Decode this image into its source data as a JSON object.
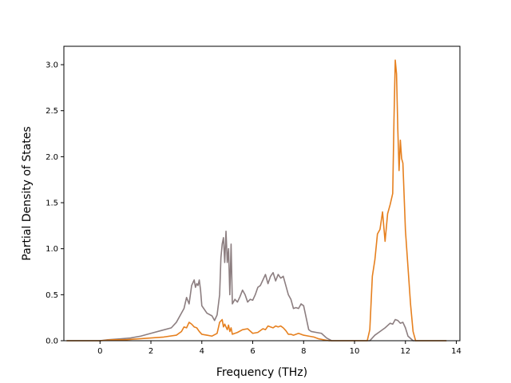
{
  "chart_data": {
    "type": "line",
    "title": "",
    "xlabel": "Frequency (THz)",
    "ylabel": "Partial Density of States",
    "xlim": [
      -1.42,
      14.14
    ],
    "ylim": [
      0.0,
      3.2
    ],
    "xticks": [
      0,
      2,
      4,
      6,
      8,
      10,
      12,
      14
    ],
    "xtick_labels": [
      "0",
      "2",
      "4",
      "6",
      "8",
      "10",
      "12",
      "14"
    ],
    "yticks": [
      0.0,
      0.5,
      1.0,
      1.5,
      2.0,
      2.5,
      3.0
    ],
    "ytick_labels": [
      "0.0",
      "0.5",
      "1.0",
      "1.5",
      "2.0",
      "2.5",
      "3.0"
    ],
    "grid": false,
    "legend": "none",
    "series": [
      {
        "color": "#8c7e80",
        "x": [
          -1.3,
          0.0,
          0.3,
          0.8,
          1.2,
          1.6,
          2.0,
          2.4,
          2.8,
          3.0,
          3.2,
          3.3,
          3.4,
          3.5,
          3.6,
          3.7,
          3.75,
          3.8,
          3.85,
          3.9,
          3.95,
          4.0,
          4.2,
          4.4,
          4.5,
          4.6,
          4.7,
          4.75,
          4.8,
          4.85,
          4.9,
          4.95,
          5.0,
          5.05,
          5.1,
          5.15,
          5.2,
          5.3,
          5.4,
          5.5,
          5.6,
          5.7,
          5.8,
          5.9,
          6.0,
          6.1,
          6.2,
          6.3,
          6.4,
          6.5,
          6.6,
          6.7,
          6.8,
          6.9,
          7.0,
          7.1,
          7.2,
          7.3,
          7.4,
          7.5,
          7.6,
          7.7,
          7.8,
          7.9,
          8.0,
          8.1,
          8.2,
          8.3,
          8.5,
          8.7,
          8.9,
          9.1,
          10.0,
          10.6,
          10.8,
          11.0,
          11.2,
          11.4,
          11.5,
          11.6,
          11.7,
          11.8,
          11.9,
          12.0,
          12.1,
          12.3,
          13.6
        ],
        "y": [
          0.0,
          0.0,
          0.01,
          0.02,
          0.03,
          0.05,
          0.08,
          0.11,
          0.14,
          0.2,
          0.3,
          0.35,
          0.47,
          0.4,
          0.6,
          0.66,
          0.58,
          0.62,
          0.6,
          0.66,
          0.55,
          0.38,
          0.3,
          0.27,
          0.22,
          0.28,
          0.5,
          0.9,
          1.05,
          1.12,
          0.85,
          1.19,
          0.85,
          1.0,
          0.5,
          1.05,
          0.4,
          0.45,
          0.42,
          0.48,
          0.55,
          0.5,
          0.42,
          0.45,
          0.44,
          0.5,
          0.58,
          0.6,
          0.66,
          0.72,
          0.62,
          0.7,
          0.74,
          0.65,
          0.72,
          0.68,
          0.7,
          0.6,
          0.5,
          0.45,
          0.35,
          0.36,
          0.35,
          0.4,
          0.38,
          0.25,
          0.12,
          0.1,
          0.09,
          0.08,
          0.03,
          0.0,
          0.0,
          0.0,
          0.06,
          0.1,
          0.14,
          0.19,
          0.18,
          0.23,
          0.22,
          0.19,
          0.2,
          0.14,
          0.05,
          0.0,
          0.0
        ]
      },
      {
        "color": "#e6801f",
        "x": [
          -1.3,
          0.0,
          0.5,
          1.0,
          1.5,
          2.0,
          2.5,
          3.0,
          3.2,
          3.3,
          3.4,
          3.5,
          3.6,
          3.7,
          3.8,
          3.9,
          4.0,
          4.2,
          4.4,
          4.6,
          4.7,
          4.8,
          4.85,
          4.9,
          5.0,
          5.05,
          5.1,
          5.15,
          5.2,
          5.4,
          5.6,
          5.8,
          6.0,
          6.2,
          6.4,
          6.5,
          6.6,
          6.7,
          6.8,
          6.9,
          7.0,
          7.1,
          7.2,
          7.3,
          7.4,
          7.5,
          7.6,
          7.8,
          8.0,
          8.2,
          8.4,
          8.6,
          8.8,
          9.0,
          10.0,
          10.5,
          10.6,
          10.7,
          10.8,
          10.9,
          11.0,
          11.1,
          11.2,
          11.3,
          11.4,
          11.5,
          11.55,
          11.6,
          11.65,
          11.7,
          11.75,
          11.8,
          11.85,
          11.9,
          12.0,
          12.1,
          12.2,
          12.3,
          12.4,
          13.6
        ],
        "y": [
          0.0,
          0.0,
          0.01,
          0.01,
          0.02,
          0.03,
          0.04,
          0.06,
          0.1,
          0.15,
          0.14,
          0.2,
          0.18,
          0.15,
          0.14,
          0.1,
          0.07,
          0.06,
          0.05,
          0.08,
          0.2,
          0.23,
          0.15,
          0.18,
          0.12,
          0.17,
          0.1,
          0.14,
          0.07,
          0.09,
          0.12,
          0.13,
          0.08,
          0.09,
          0.13,
          0.12,
          0.16,
          0.15,
          0.14,
          0.16,
          0.15,
          0.16,
          0.14,
          0.11,
          0.07,
          0.07,
          0.06,
          0.08,
          0.06,
          0.05,
          0.04,
          0.02,
          0.01,
          0.0,
          0.0,
          0.0,
          0.12,
          0.7,
          0.88,
          1.16,
          1.21,
          1.4,
          1.08,
          1.38,
          1.48,
          1.6,
          2.4,
          3.05,
          2.9,
          2.3,
          1.85,
          2.18,
          1.98,
          1.93,
          1.2,
          0.8,
          0.4,
          0.1,
          0.0,
          0.0
        ]
      }
    ]
  }
}
